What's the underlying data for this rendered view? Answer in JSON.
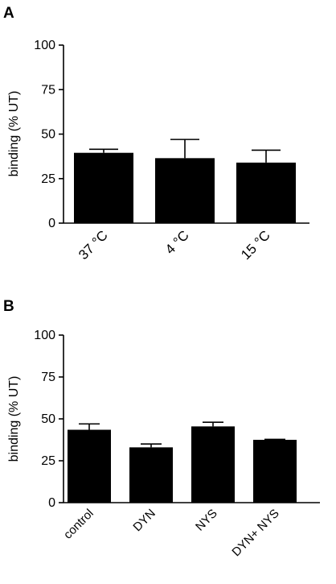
{
  "chart_data": [
    {
      "panel": "A",
      "type": "bar",
      "categories": [
        "37 °C",
        "4 °C",
        "15 °C"
      ],
      "values": [
        39.5,
        36.5,
        34.0
      ],
      "error": [
        2.0,
        10.5,
        7.0
      ],
      "ylabel": "binding (% UT)",
      "ylim": [
        0,
        100
      ],
      "yticks": [
        "0",
        "25",
        "50",
        "75",
        "100"
      ],
      "bar_color": "#000000",
      "grid": false
    },
    {
      "panel": "B",
      "type": "bar",
      "categories": [
        "control",
        "DYN",
        "NYS",
        "DYN+ NYS"
      ],
      "values": [
        43.5,
        33.0,
        45.5,
        37.5
      ],
      "error": [
        3.5,
        2.0,
        2.5,
        0.3
      ],
      "ylabel": "binding (% UT)",
      "ylim": [
        0,
        100
      ],
      "yticks": [
        "0",
        "25",
        "50",
        "75",
        "100"
      ],
      "bar_color": "#000000",
      "grid": false
    }
  ]
}
